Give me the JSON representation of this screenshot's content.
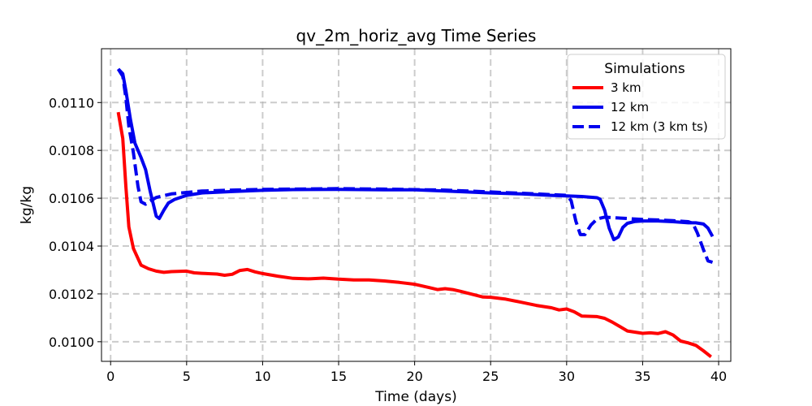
{
  "chart_data": {
    "type": "line",
    "title": "qv_2m_horiz_avg Time Series",
    "xlabel": "Time (days)",
    "ylabel": "kg/kg",
    "xlim": [
      -0.6,
      40.8
    ],
    "ylim": [
      0.009918,
      0.011225
    ],
    "xticks": [
      0,
      5,
      10,
      15,
      20,
      25,
      30,
      35,
      40
    ],
    "xtick_labels": [
      "0",
      "5",
      "10",
      "15",
      "20",
      "25",
      "30",
      "35",
      "40"
    ],
    "yticks": [
      0.01,
      0.0102,
      0.0104,
      0.0106,
      0.0108,
      0.011
    ],
    "ytick_labels": [
      "0.0100",
      "0.0102",
      "0.0104",
      "0.0106",
      "0.0108",
      "0.0110"
    ],
    "grid": true,
    "legend": {
      "title": "Simulations",
      "placement": "upper right",
      "entries": [
        "3 km",
        "12 km",
        "12 km (3 km ts)"
      ]
    },
    "series": [
      {
        "name": "3 km",
        "color": "#ff0000",
        "style": "solid",
        "x": [
          0.5,
          0.8,
          1.0,
          1.2,
          1.5,
          2.0,
          2.5,
          3.0,
          3.5,
          4.0,
          5.0,
          5.5,
          6.0,
          7.0,
          7.5,
          8.0,
          8.5,
          9.0,
          9.5,
          10.0,
          11.0,
          12.0,
          13.0,
          14.0,
          15.0,
          16.0,
          17.0,
          18.0,
          19.0,
          20.0,
          20.5,
          21.0,
          21.5,
          22.0,
          22.5,
          23.0,
          24.0,
          24.5,
          25.0,
          26.0,
          27.0,
          28.0,
          29.0,
          29.5,
          30.0,
          30.5,
          31.0,
          32.0,
          32.5,
          33.0,
          34.0,
          35.0,
          35.5,
          36.0,
          36.5,
          37.0,
          37.5,
          38.0,
          38.5,
          39.0,
          39.5
        ],
        "values": [
          0.01096,
          0.01085,
          0.01065,
          0.01048,
          0.01039,
          0.01032,
          0.010305,
          0.010295,
          0.01029,
          0.010293,
          0.010295,
          0.010288,
          0.010286,
          0.010283,
          0.010278,
          0.010282,
          0.010298,
          0.010302,
          0.010292,
          0.010285,
          0.010274,
          0.010265,
          0.010263,
          0.010266,
          0.010262,
          0.010258,
          0.010258,
          0.010254,
          0.010248,
          0.01024,
          0.010233,
          0.010226,
          0.010218,
          0.010222,
          0.010218,
          0.010211,
          0.010195,
          0.010187,
          0.010186,
          0.010178,
          0.010165,
          0.010152,
          0.010142,
          0.010133,
          0.010137,
          0.010125,
          0.010107,
          0.010105,
          0.010098,
          0.010082,
          0.010045,
          0.010035,
          0.010037,
          0.010034,
          0.010042,
          0.010028,
          0.010003,
          0.009995,
          0.009985,
          0.009962,
          0.009937
        ]
      },
      {
        "name": "12 km",
        "color": "#0000ee",
        "style": "solid",
        "x": [
          0.5,
          0.8,
          1.0,
          1.3,
          1.6,
          2.0,
          2.3,
          2.6,
          3.0,
          3.2,
          3.5,
          3.8,
          4.2,
          5.0,
          6.0,
          8.0,
          10.0,
          12.0,
          15.0,
          18.0,
          20.0,
          22.0,
          25.0,
          27.0,
          29.0,
          30.0,
          31.0,
          32.0,
          32.2,
          32.5,
          32.8,
          33.1,
          33.4,
          33.7,
          34.0,
          34.5,
          35.0,
          36.0,
          37.0,
          38.0,
          38.5,
          39.0,
          39.3,
          39.6
        ],
        "values": [
          0.01114,
          0.01112,
          0.01105,
          0.01093,
          0.01083,
          0.01077,
          0.01072,
          0.01063,
          0.010525,
          0.010515,
          0.01055,
          0.01058,
          0.010595,
          0.010612,
          0.010622,
          0.010628,
          0.010633,
          0.010636,
          0.010637,
          0.010635,
          0.010635,
          0.01063,
          0.010622,
          0.010618,
          0.010612,
          0.01061,
          0.010607,
          0.010602,
          0.010596,
          0.01055,
          0.010475,
          0.010427,
          0.010438,
          0.010478,
          0.010495,
          0.010503,
          0.010505,
          0.010505,
          0.010502,
          0.010497,
          0.010497,
          0.010492,
          0.010475,
          0.01044
        ]
      },
      {
        "name": "12 km (3 km ts)",
        "color": "#0000ee",
        "style": "dashed",
        "x": [
          0.5,
          0.8,
          1.0,
          1.2,
          1.5,
          1.8,
          2.0,
          2.3,
          2.5,
          3.0,
          4.0,
          5.0,
          6.0,
          8.0,
          10.0,
          12.0,
          15.0,
          18.0,
          20.0,
          22.0,
          25.0,
          28.0,
          30.0,
          30.3,
          30.6,
          30.9,
          31.2,
          31.6,
          32.0,
          32.5,
          33.0,
          34.0,
          35.0,
          36.0,
          37.0,
          38.0,
          38.3,
          38.6,
          39.0,
          39.3,
          39.6
        ],
        "values": [
          0.01114,
          0.01111,
          0.01102,
          0.0109,
          0.01079,
          0.01065,
          0.010585,
          0.010575,
          0.010585,
          0.010603,
          0.010618,
          0.010624,
          0.01063,
          0.010634,
          0.010637,
          0.010638,
          0.01064,
          0.010638,
          0.010636,
          0.010634,
          0.010626,
          0.010618,
          0.010612,
          0.01059,
          0.010505,
          0.010448,
          0.010448,
          0.010488,
          0.010513,
          0.010521,
          0.010519,
          0.010515,
          0.010511,
          0.010509,
          0.010506,
          0.010502,
          0.010495,
          0.010455,
          0.010385,
          0.010338,
          0.010332
        ]
      }
    ]
  }
}
